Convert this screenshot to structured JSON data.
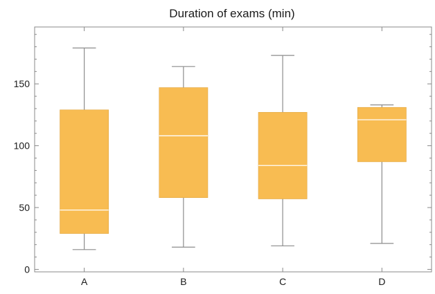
{
  "chart_data": {
    "type": "boxplot",
    "title": "Duration of exams (min)",
    "xlabel": "",
    "ylabel": "",
    "ylim": [
      -2,
      196
    ],
    "yticks": [
      0,
      50,
      100,
      150
    ],
    "grid": false,
    "legend": "none",
    "box_color": "#f8bc52",
    "median_color": "#ffffff",
    "whisker_color": "#8c8c8c",
    "categories": [
      "A",
      "B",
      "C",
      "D"
    ],
    "boxes": [
      {
        "label": "A",
        "min": 16,
        "q1": 29,
        "median": 48,
        "q3": 129,
        "max": 179
      },
      {
        "label": "B",
        "min": 18,
        "q1": 58,
        "median": 108,
        "q3": 147,
        "max": 164
      },
      {
        "label": "C",
        "min": 19,
        "q1": 57,
        "median": 84,
        "q3": 127,
        "max": 173
      },
      {
        "label": "D",
        "min": 21,
        "q1": 87,
        "median": 121,
        "q3": 131,
        "max": 133
      }
    ]
  }
}
